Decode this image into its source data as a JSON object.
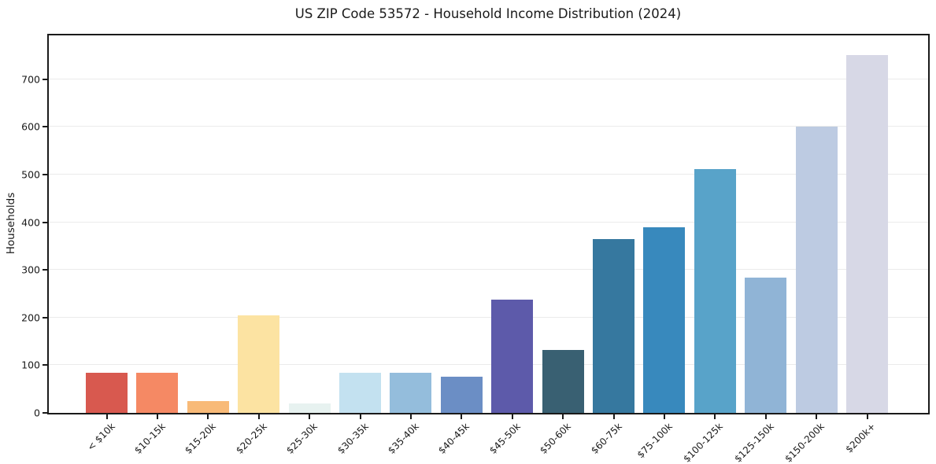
{
  "title": "US ZIP Code 53572 - Household Income Distribution (2024)",
  "chart_data": {
    "type": "bar",
    "title": "US ZIP Code 53572 - Household Income Distribution (2024)",
    "xlabel": "",
    "ylabel": "Households",
    "categories": [
      "< $10k",
      "$10-15k",
      "$15-20k",
      "$20-25k",
      "$25-30k",
      "$30-35k",
      "$35-40k",
      "$40-45k",
      "$45-50k",
      "$50-60k",
      "$60-75k",
      "$75-100k",
      "$100-125k",
      "$125-150k",
      "$150-200k",
      "$200k+"
    ],
    "values": [
      84,
      84,
      24,
      205,
      20,
      84,
      84,
      76,
      238,
      132,
      365,
      390,
      512,
      284,
      600,
      750
    ],
    "bar_colors": [
      "#d8594f",
      "#f58964",
      "#f8ba78",
      "#fce3a2",
      "#e7f2f0",
      "#c3e1f0",
      "#94bddc",
      "#6b8ec5",
      "#5d5aaa",
      "#396072",
      "#36789f",
      "#3889bd",
      "#58a3c9",
      "#90b4d6",
      "#bdcbe2",
      "#d7d8e6"
    ],
    "ylim": [
      0,
      792
    ],
    "yticks": [
      0,
      100,
      200,
      300,
      400,
      500,
      600,
      700
    ],
    "grid": "horizontal",
    "legend": "none",
    "colors": {
      "spine": "#1a1a1a",
      "grid": "#ebebeb",
      "background": "#ffffff",
      "text": "#1a1a1a"
    }
  }
}
